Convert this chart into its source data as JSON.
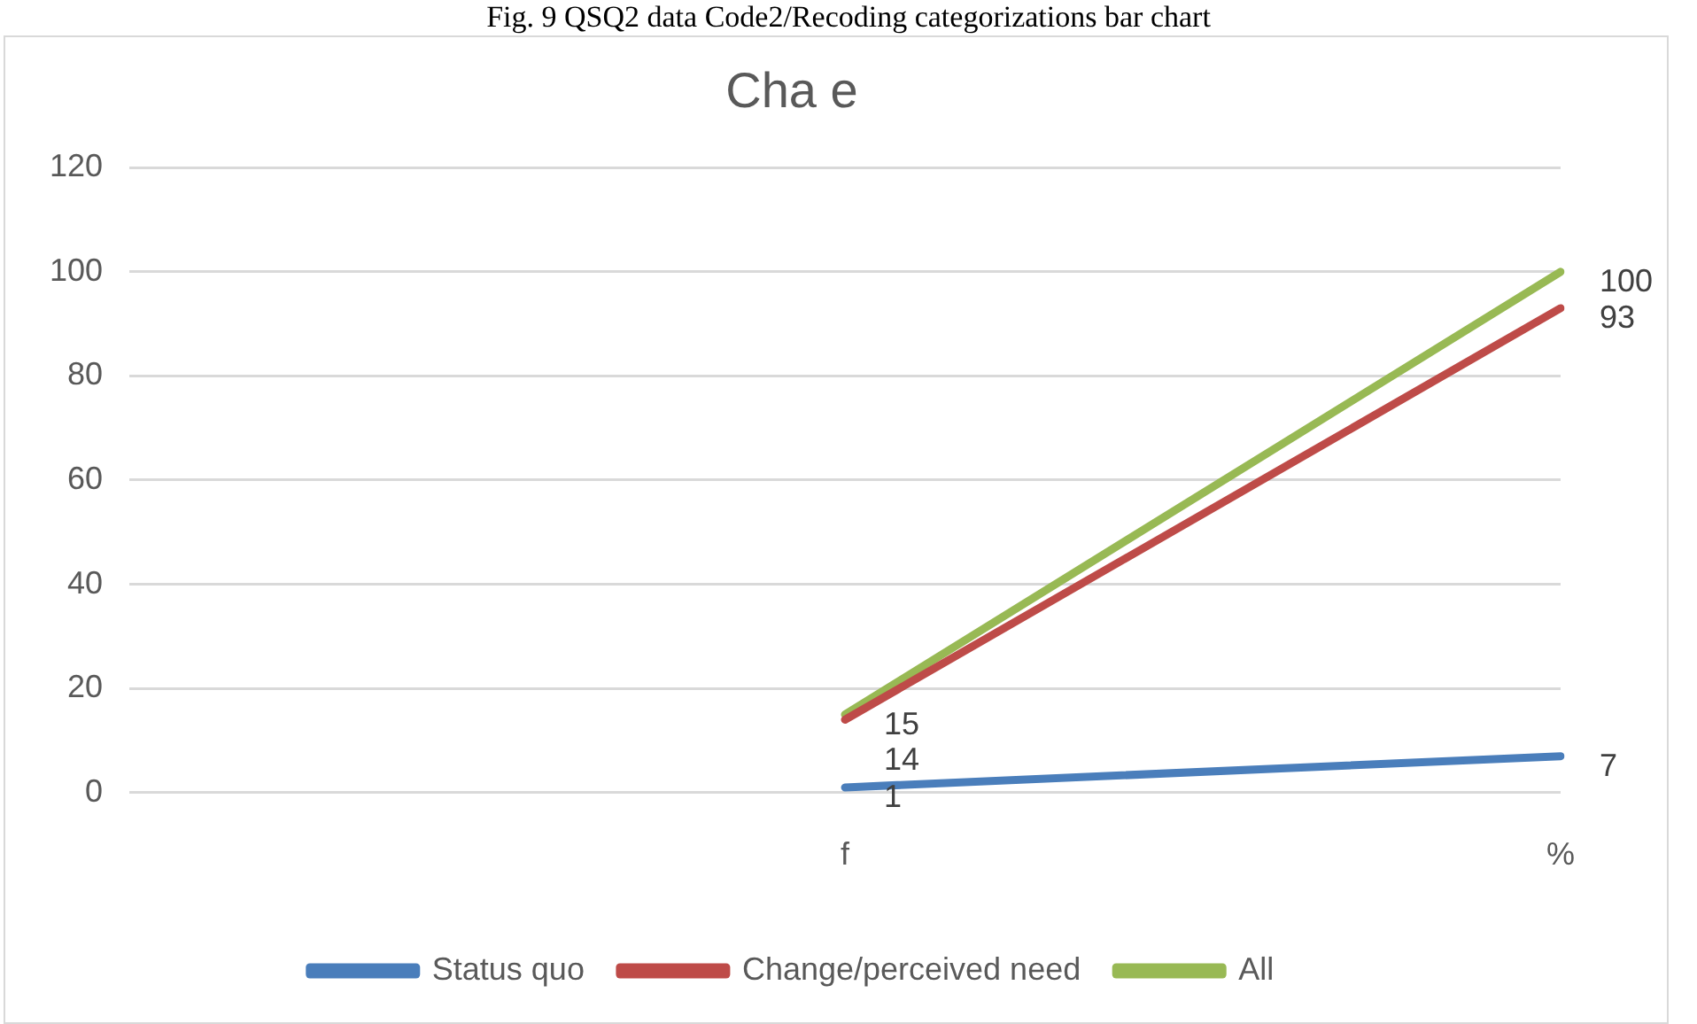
{
  "chart_data": {
    "type": "line",
    "title": "Cha e",
    "annotations": [
      "Fig. 9 QSQ2 data Code2/Recoding categorizations bar chart"
    ],
    "categories": [
      null,
      "f",
      "%"
    ],
    "series": [
      {
        "name": "Status quo",
        "color": "#4a7ebb",
        "values": [
          null,
          1,
          7
        ]
      },
      {
        "name": "Change/perceived need",
        "color": "#be4b48",
        "values": [
          null,
          14,
          93
        ]
      },
      {
        "name": "All",
        "color": "#98b954",
        "values": [
          null,
          15,
          100
        ]
      }
    ],
    "ylim": [
      0,
      120
    ],
    "yticks": [
      0,
      20,
      40,
      60,
      80,
      100,
      120
    ],
    "grid": "y",
    "legend": "bottom",
    "marker": "none",
    "line_style": "solid",
    "data_labels": true
  }
}
